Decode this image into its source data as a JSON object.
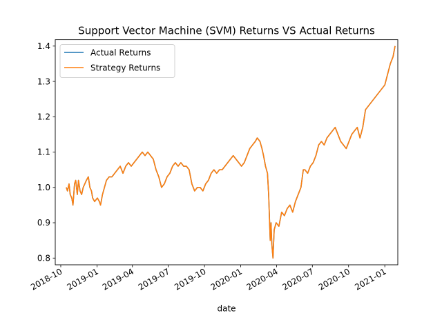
{
  "chart_data": {
    "type": "line",
    "title": "Support Vector Machine (SVM) Returns VS Actual Returns",
    "xlabel": "date",
    "ylabel": "",
    "x_ticks": [
      "2018-10",
      "2019-01",
      "2019-04",
      "2019-07",
      "2019-10",
      "2020-01",
      "2020-04",
      "2020-07",
      "2020-10",
      "2021-01"
    ],
    "y_ticks": [
      "0.8",
      "0.9",
      "1.0",
      "1.1",
      "1.2",
      "1.3",
      "1.4"
    ],
    "xlim": [
      "2018-09-17",
      "2021-02-03"
    ],
    "ylim": [
      0.781,
      1.418
    ],
    "grid": false,
    "legend_position": "upper left",
    "series": [
      {
        "name": "Actual Returns",
        "color": "#1f77b4",
        "points": [
          [
            "2018-10-15",
            1.0
          ],
          [
            "2018-10-18",
            0.99
          ],
          [
            "2018-10-22",
            1.01
          ],
          [
            "2018-10-25",
            0.98
          ],
          [
            "2018-10-29",
            0.97
          ],
          [
            "2018-11-01",
            0.95
          ],
          [
            "2018-11-05",
            1.01
          ],
          [
            "2018-11-08",
            1.02
          ],
          [
            "2018-11-12",
            0.98
          ],
          [
            "2018-11-15",
            1.02
          ],
          [
            "2018-11-19",
            0.99
          ],
          [
            "2018-11-23",
            0.98
          ],
          [
            "2018-11-27",
            1.0
          ],
          [
            "2018-12-01",
            1.01
          ],
          [
            "2018-12-05",
            1.02
          ],
          [
            "2018-12-10",
            1.03
          ],
          [
            "2018-12-14",
            1.0
          ],
          [
            "2018-12-18",
            0.99
          ],
          [
            "2018-12-21",
            0.97
          ],
          [
            "2018-12-26",
            0.96
          ],
          [
            "2019-01-02",
            0.97
          ],
          [
            "2019-01-07",
            0.96
          ],
          [
            "2019-01-10",
            0.95
          ],
          [
            "2019-01-15",
            0.98
          ],
          [
            "2019-01-20",
            1.0
          ],
          [
            "2019-01-25",
            1.02
          ],
          [
            "2019-02-01",
            1.03
          ],
          [
            "2019-02-08",
            1.03
          ],
          [
            "2019-02-15",
            1.04
          ],
          [
            "2019-02-22",
            1.05
          ],
          [
            "2019-03-01",
            1.06
          ],
          [
            "2019-03-08",
            1.04
          ],
          [
            "2019-03-15",
            1.06
          ],
          [
            "2019-03-22",
            1.07
          ],
          [
            "2019-03-29",
            1.06
          ],
          [
            "2019-04-05",
            1.07
          ],
          [
            "2019-04-12",
            1.08
          ],
          [
            "2019-04-19",
            1.09
          ],
          [
            "2019-04-26",
            1.1
          ],
          [
            "2019-05-03",
            1.09
          ],
          [
            "2019-05-10",
            1.1
          ],
          [
            "2019-05-17",
            1.09
          ],
          [
            "2019-05-24",
            1.08
          ],
          [
            "2019-05-31",
            1.05
          ],
          [
            "2019-06-07",
            1.03
          ],
          [
            "2019-06-14",
            1.0
          ],
          [
            "2019-06-21",
            1.01
          ],
          [
            "2019-06-28",
            1.03
          ],
          [
            "2019-07-05",
            1.04
          ],
          [
            "2019-07-12",
            1.06
          ],
          [
            "2019-07-19",
            1.07
          ],
          [
            "2019-07-26",
            1.06
          ],
          [
            "2019-08-02",
            1.07
          ],
          [
            "2019-08-09",
            1.06
          ],
          [
            "2019-08-16",
            1.06
          ],
          [
            "2019-08-23",
            1.05
          ],
          [
            "2019-08-30",
            1.01
          ],
          [
            "2019-09-06",
            0.99
          ],
          [
            "2019-09-13",
            1.0
          ],
          [
            "2019-09-20",
            1.0
          ],
          [
            "2019-09-27",
            0.99
          ],
          [
            "2019-10-04",
            1.01
          ],
          [
            "2019-10-11",
            1.02
          ],
          [
            "2019-10-18",
            1.04
          ],
          [
            "2019-10-25",
            1.05
          ],
          [
            "2019-11-01",
            1.04
          ],
          [
            "2019-11-08",
            1.05
          ],
          [
            "2019-11-15",
            1.05
          ],
          [
            "2019-11-22",
            1.06
          ],
          [
            "2019-11-29",
            1.07
          ],
          [
            "2019-12-06",
            1.08
          ],
          [
            "2019-12-13",
            1.09
          ],
          [
            "2019-12-20",
            1.08
          ],
          [
            "2019-12-27",
            1.07
          ],
          [
            "2020-01-03",
            1.06
          ],
          [
            "2020-01-10",
            1.07
          ],
          [
            "2020-01-17",
            1.09
          ],
          [
            "2020-01-24",
            1.11
          ],
          [
            "2020-01-31",
            1.12
          ],
          [
            "2020-02-07",
            1.13
          ],
          [
            "2020-02-12",
            1.14
          ],
          [
            "2020-02-19",
            1.13
          ],
          [
            "2020-02-24",
            1.11
          ],
          [
            "2020-02-28",
            1.09
          ],
          [
            "2020-03-04",
            1.06
          ],
          [
            "2020-03-09",
            1.04
          ],
          [
            "2020-03-12",
            0.98
          ],
          [
            "2020-03-16",
            0.85
          ],
          [
            "2020-03-18",
            0.9
          ],
          [
            "2020-03-20",
            0.84
          ],
          [
            "2020-03-23",
            0.8
          ],
          [
            "2020-03-26",
            0.88
          ],
          [
            "2020-03-31",
            0.9
          ],
          [
            "2020-04-07",
            0.89
          ],
          [
            "2020-04-14",
            0.93
          ],
          [
            "2020-04-21",
            0.92
          ],
          [
            "2020-04-28",
            0.94
          ],
          [
            "2020-05-05",
            0.95
          ],
          [
            "2020-05-12",
            0.93
          ],
          [
            "2020-05-19",
            0.96
          ],
          [
            "2020-05-26",
            0.98
          ],
          [
            "2020-06-02",
            1.0
          ],
          [
            "2020-06-08",
            1.05
          ],
          [
            "2020-06-12",
            1.05
          ],
          [
            "2020-06-19",
            1.04
          ],
          [
            "2020-06-26",
            1.06
          ],
          [
            "2020-07-03",
            1.07
          ],
          [
            "2020-07-10",
            1.09
          ],
          [
            "2020-07-17",
            1.12
          ],
          [
            "2020-07-24",
            1.13
          ],
          [
            "2020-07-31",
            1.12
          ],
          [
            "2020-08-07",
            1.14
          ],
          [
            "2020-08-14",
            1.15
          ],
          [
            "2020-08-21",
            1.16
          ],
          [
            "2020-08-28",
            1.17
          ],
          [
            "2020-09-04",
            1.15
          ],
          [
            "2020-09-11",
            1.13
          ],
          [
            "2020-09-18",
            1.12
          ],
          [
            "2020-09-25",
            1.11
          ],
          [
            "2020-10-02",
            1.13
          ],
          [
            "2020-10-09",
            1.15
          ],
          [
            "2020-10-16",
            1.16
          ],
          [
            "2020-10-23",
            1.17
          ],
          [
            "2020-10-30",
            1.14
          ],
          [
            "2020-11-06",
            1.17
          ],
          [
            "2020-11-13",
            1.22
          ],
          [
            "2020-11-20",
            1.23
          ],
          [
            "2020-11-27",
            1.24
          ],
          [
            "2020-12-04",
            1.25
          ],
          [
            "2020-12-11",
            1.26
          ],
          [
            "2020-12-18",
            1.27
          ],
          [
            "2020-12-25",
            1.28
          ],
          [
            "2021-01-01",
            1.29
          ],
          [
            "2021-01-08",
            1.32
          ],
          [
            "2021-01-15",
            1.35
          ],
          [
            "2021-01-22",
            1.37
          ],
          [
            "2021-01-27",
            1.4
          ]
        ]
      },
      {
        "name": "Strategy Returns",
        "color": "#ff7f0e",
        "points": [
          [
            "2018-10-15",
            1.0
          ],
          [
            "2018-10-18",
            0.99
          ],
          [
            "2018-10-22",
            1.01
          ],
          [
            "2018-10-25",
            0.98
          ],
          [
            "2018-10-29",
            0.97
          ],
          [
            "2018-11-01",
            0.95
          ],
          [
            "2018-11-05",
            1.01
          ],
          [
            "2018-11-08",
            1.02
          ],
          [
            "2018-11-12",
            0.98
          ],
          [
            "2018-11-15",
            1.02
          ],
          [
            "2018-11-19",
            0.99
          ],
          [
            "2018-11-23",
            0.98
          ],
          [
            "2018-11-27",
            1.0
          ],
          [
            "2018-12-01",
            1.01
          ],
          [
            "2018-12-05",
            1.02
          ],
          [
            "2018-12-10",
            1.03
          ],
          [
            "2018-12-14",
            1.0
          ],
          [
            "2018-12-18",
            0.99
          ],
          [
            "2018-12-21",
            0.97
          ],
          [
            "2018-12-26",
            0.96
          ],
          [
            "2019-01-02",
            0.97
          ],
          [
            "2019-01-07",
            0.96
          ],
          [
            "2019-01-10",
            0.95
          ],
          [
            "2019-01-15",
            0.98
          ],
          [
            "2019-01-20",
            1.0
          ],
          [
            "2019-01-25",
            1.02
          ],
          [
            "2019-02-01",
            1.03
          ],
          [
            "2019-02-08",
            1.03
          ],
          [
            "2019-02-15",
            1.04
          ],
          [
            "2019-02-22",
            1.05
          ],
          [
            "2019-03-01",
            1.06
          ],
          [
            "2019-03-08",
            1.04
          ],
          [
            "2019-03-15",
            1.06
          ],
          [
            "2019-03-22",
            1.07
          ],
          [
            "2019-03-29",
            1.06
          ],
          [
            "2019-04-05",
            1.07
          ],
          [
            "2019-04-12",
            1.08
          ],
          [
            "2019-04-19",
            1.09
          ],
          [
            "2019-04-26",
            1.1
          ],
          [
            "2019-05-03",
            1.09
          ],
          [
            "2019-05-10",
            1.1
          ],
          [
            "2019-05-17",
            1.09
          ],
          [
            "2019-05-24",
            1.08
          ],
          [
            "2019-05-31",
            1.05
          ],
          [
            "2019-06-07",
            1.03
          ],
          [
            "2019-06-14",
            1.0
          ],
          [
            "2019-06-21",
            1.01
          ],
          [
            "2019-06-28",
            1.03
          ],
          [
            "2019-07-05",
            1.04
          ],
          [
            "2019-07-12",
            1.06
          ],
          [
            "2019-07-19",
            1.07
          ],
          [
            "2019-07-26",
            1.06
          ],
          [
            "2019-08-02",
            1.07
          ],
          [
            "2019-08-09",
            1.06
          ],
          [
            "2019-08-16",
            1.06
          ],
          [
            "2019-08-23",
            1.05
          ],
          [
            "2019-08-30",
            1.01
          ],
          [
            "2019-09-06",
            0.99
          ],
          [
            "2019-09-13",
            1.0
          ],
          [
            "2019-09-20",
            1.0
          ],
          [
            "2019-09-27",
            0.99
          ],
          [
            "2019-10-04",
            1.01
          ],
          [
            "2019-10-11",
            1.02
          ],
          [
            "2019-10-18",
            1.04
          ],
          [
            "2019-10-25",
            1.05
          ],
          [
            "2019-11-01",
            1.04
          ],
          [
            "2019-11-08",
            1.05
          ],
          [
            "2019-11-15",
            1.05
          ],
          [
            "2019-11-22",
            1.06
          ],
          [
            "2019-11-29",
            1.07
          ],
          [
            "2019-12-06",
            1.08
          ],
          [
            "2019-12-13",
            1.09
          ],
          [
            "2019-12-20",
            1.08
          ],
          [
            "2019-12-27",
            1.07
          ],
          [
            "2020-01-03",
            1.06
          ],
          [
            "2020-01-10",
            1.07
          ],
          [
            "2020-01-17",
            1.09
          ],
          [
            "2020-01-24",
            1.11
          ],
          [
            "2020-01-31",
            1.12
          ],
          [
            "2020-02-07",
            1.13
          ],
          [
            "2020-02-12",
            1.14
          ],
          [
            "2020-02-19",
            1.13
          ],
          [
            "2020-02-24",
            1.11
          ],
          [
            "2020-02-28",
            1.09
          ],
          [
            "2020-03-04",
            1.06
          ],
          [
            "2020-03-09",
            1.04
          ],
          [
            "2020-03-12",
            0.98
          ],
          [
            "2020-03-16",
            0.85
          ],
          [
            "2020-03-18",
            0.9
          ],
          [
            "2020-03-20",
            0.84
          ],
          [
            "2020-03-23",
            0.8
          ],
          [
            "2020-03-26",
            0.88
          ],
          [
            "2020-03-31",
            0.9
          ],
          [
            "2020-04-07",
            0.89
          ],
          [
            "2020-04-14",
            0.93
          ],
          [
            "2020-04-21",
            0.92
          ],
          [
            "2020-04-28",
            0.94
          ],
          [
            "2020-05-05",
            0.95
          ],
          [
            "2020-05-12",
            0.93
          ],
          [
            "2020-05-19",
            0.96
          ],
          [
            "2020-05-26",
            0.98
          ],
          [
            "2020-06-02",
            1.0
          ],
          [
            "2020-06-08",
            1.05
          ],
          [
            "2020-06-12",
            1.05
          ],
          [
            "2020-06-19",
            1.04
          ],
          [
            "2020-06-26",
            1.06
          ],
          [
            "2020-07-03",
            1.07
          ],
          [
            "2020-07-10",
            1.09
          ],
          [
            "2020-07-17",
            1.12
          ],
          [
            "2020-07-24",
            1.13
          ],
          [
            "2020-07-31",
            1.12
          ],
          [
            "2020-08-07",
            1.14
          ],
          [
            "2020-08-14",
            1.15
          ],
          [
            "2020-08-21",
            1.16
          ],
          [
            "2020-08-28",
            1.17
          ],
          [
            "2020-09-04",
            1.15
          ],
          [
            "2020-09-11",
            1.13
          ],
          [
            "2020-09-18",
            1.12
          ],
          [
            "2020-09-25",
            1.11
          ],
          [
            "2020-10-02",
            1.13
          ],
          [
            "2020-10-09",
            1.15
          ],
          [
            "2020-10-16",
            1.16
          ],
          [
            "2020-10-23",
            1.17
          ],
          [
            "2020-10-30",
            1.14
          ],
          [
            "2020-11-06",
            1.17
          ],
          [
            "2020-11-13",
            1.22
          ],
          [
            "2020-11-20",
            1.23
          ],
          [
            "2020-11-27",
            1.24
          ],
          [
            "2020-12-04",
            1.25
          ],
          [
            "2020-12-11",
            1.26
          ],
          [
            "2020-12-18",
            1.27
          ],
          [
            "2020-12-25",
            1.28
          ],
          [
            "2021-01-01",
            1.29
          ],
          [
            "2021-01-08",
            1.32
          ],
          [
            "2021-01-15",
            1.35
          ],
          [
            "2021-01-22",
            1.37
          ],
          [
            "2021-01-27",
            1.4
          ]
        ]
      }
    ]
  }
}
